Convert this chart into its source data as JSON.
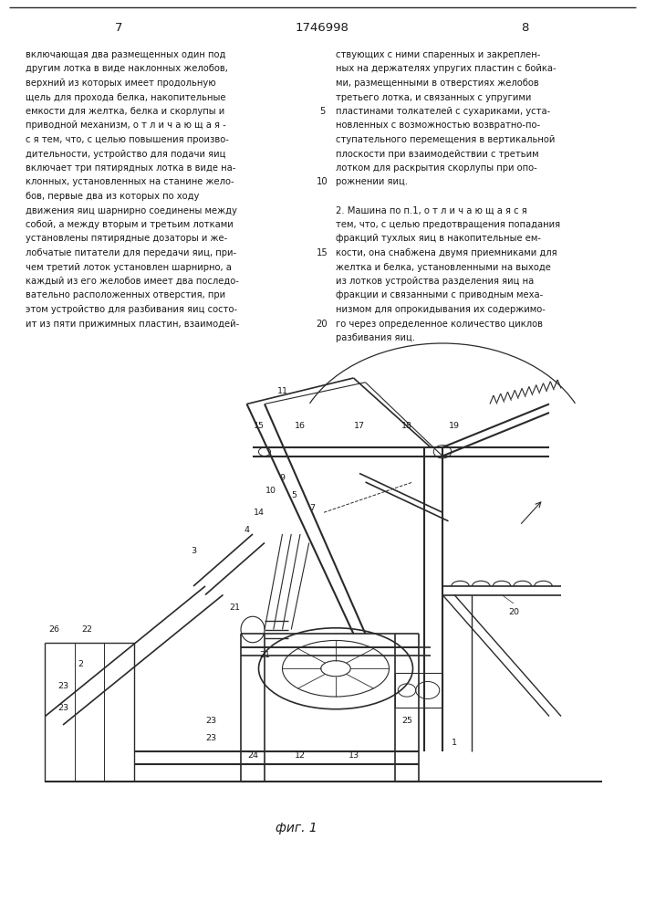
{
  "background_color": "#ffffff",
  "text_color": "#1a1a1a",
  "line_color": "#2a2a2a",
  "page_num_left": "7",
  "page_num_center": "1746998",
  "page_num_right": "8",
  "font_size_text": 7.2,
  "font_size_header": 9.5,
  "font_size_label": 6.8,
  "left_column_text": [
    "включающая два размещенных один под",
    "другим лотка в виде наклонных желобов,",
    "верхний из которых имеет продольную",
    "щель для прохода белка, накопительные",
    "емкости для желтка, белка и скорлупы и",
    "приводной механизм, о т л и ч а ю щ а я -",
    "с я тем, что, с целью повышения произво-",
    "дительности, устройство для подачи яиц",
    "включает три пятирядных лотка в виде на-",
    "клонных, установленных на станине жело-",
    "бов, первые два из которых по ходу",
    "движения яиц шарнирно соединены между",
    "собой, а между вторым и третьим лотками",
    "установлены пятирядные дозаторы и же-",
    "лобчатые питатели для передачи яиц, при-",
    "чем третий лоток установлен шарнирно, а",
    "каждый из его желобов имеет два последо-",
    "вательно расположенных отверстия, при",
    "этом устройство для разбивания яиц состо-",
    "ит из пяти прижимных пластин, взаимодей-"
  ],
  "right_column_text": [
    "ствующих с ними спаренных и закреплен-",
    "ных на держателях упругих пластин с бойка-",
    "ми, размещенными в отверстиях желобов",
    "третьего лотка, и связанных с упругими",
    "пластинами толкателей с сухариками, уста-",
    "новленных с возможностью возвратно-по-",
    "ступательного перемещения в вертикальной",
    "плоскости при взаимодействии с третьим",
    "лотком для раскрытия скорлупы при опо-",
    "рожнении яиц.",
    "",
    "2. Машина по п.1, о т л и ч а ю щ а я с я",
    "тем, что, с целью предотвращения попадания",
    "фракций тухлых яиц в накопительные ем-",
    "кости, она снабжена двумя приемниками для",
    "желтка и белка, установленными на выходе",
    "из лотков устройства разделения яиц на",
    "фракции и связанными с приводным меха-",
    "низмом для опрокидывания их содержимо-",
    "го через определенное количество циклов",
    "разбивания яиц."
  ],
  "line_numbers": {
    "4": "5",
    "9": "10",
    "14": "15",
    "19": "20"
  },
  "fig_caption": "фиг. 1"
}
